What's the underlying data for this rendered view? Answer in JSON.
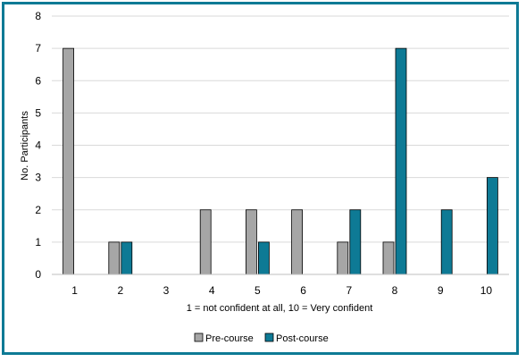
{
  "chart_data": {
    "type": "bar",
    "categories": [
      "1",
      "2",
      "3",
      "4",
      "5",
      "6",
      "7",
      "8",
      "9",
      "10"
    ],
    "series": [
      {
        "name": "Pre-course",
        "values": [
          7,
          1,
          0,
          2,
          2,
          2,
          1,
          1,
          0,
          0
        ],
        "color": "#a6a6a6"
      },
      {
        "name": "Post-course",
        "values": [
          0,
          1,
          0,
          0,
          1,
          0,
          2,
          7,
          2,
          3
        ],
        "color": "#0e7a95"
      }
    ],
    "xlabel": "1 = not confident at all, 10 = Very confident",
    "ylabel": "No. Participants",
    "ylim": [
      0,
      8
    ],
    "yticks": [
      "0",
      "1",
      "2",
      "3",
      "4",
      "5",
      "6",
      "7",
      "8"
    ],
    "grid": true,
    "legend_position": "bottom"
  },
  "colors": {
    "frame_border": "#0e7a95",
    "gridline": "#d9d9d9",
    "bar_outline": "#000000"
  }
}
